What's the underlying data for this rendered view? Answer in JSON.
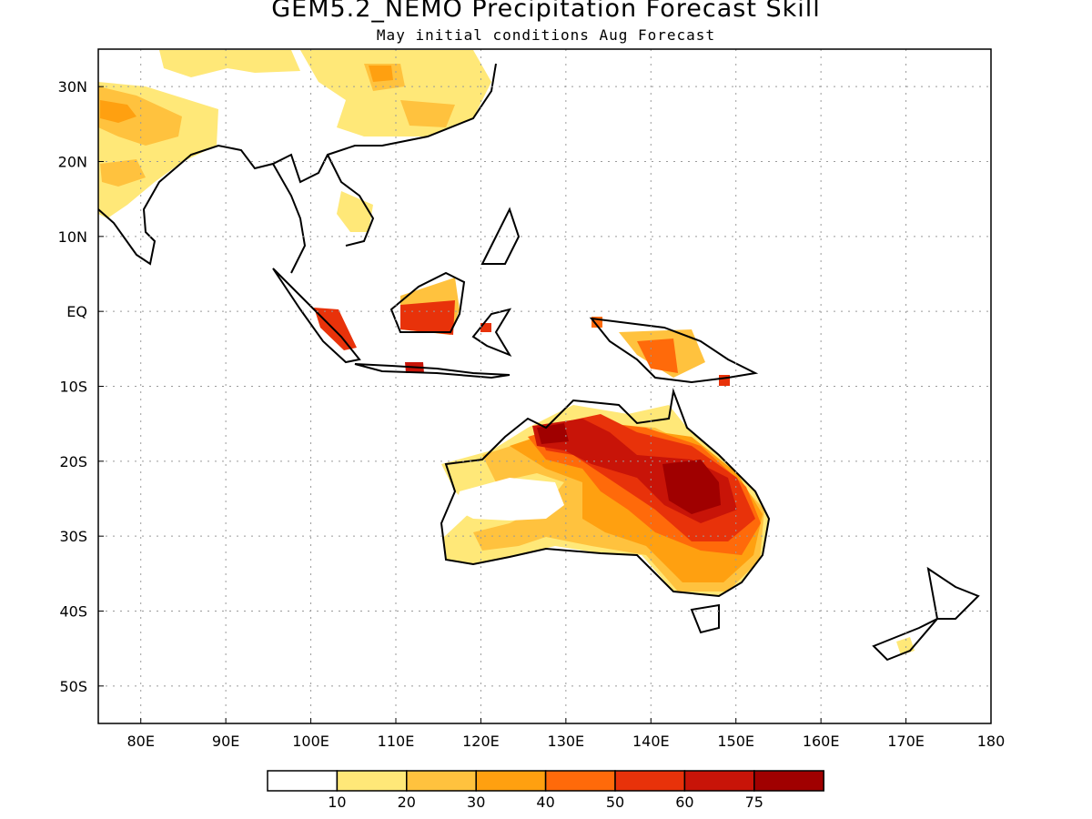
{
  "title": "GEM5.2_NEMO Precipitation Forecast Skill",
  "subtitle": "May initial conditions  Aug Forecast",
  "lon_ticks": [
    "80E",
    "90E",
    "100E",
    "110E",
    "120E",
    "130E",
    "140E",
    "150E",
    "160E",
    "170E",
    "180"
  ],
  "lat_ticks": [
    "30N",
    "20N",
    "10N",
    "EQ",
    "10S",
    "20S",
    "30S",
    "40S",
    "50S"
  ],
  "colorbar": {
    "colors": [
      "#ffffff",
      "#ffe878",
      "#ffc23e",
      "#ffa010",
      "#ff6a0a",
      "#e8320a",
      "#c81408",
      "#a00000"
    ],
    "labels": [
      "10",
      "20",
      "30",
      "40",
      "50",
      "60",
      "75"
    ]
  }
}
